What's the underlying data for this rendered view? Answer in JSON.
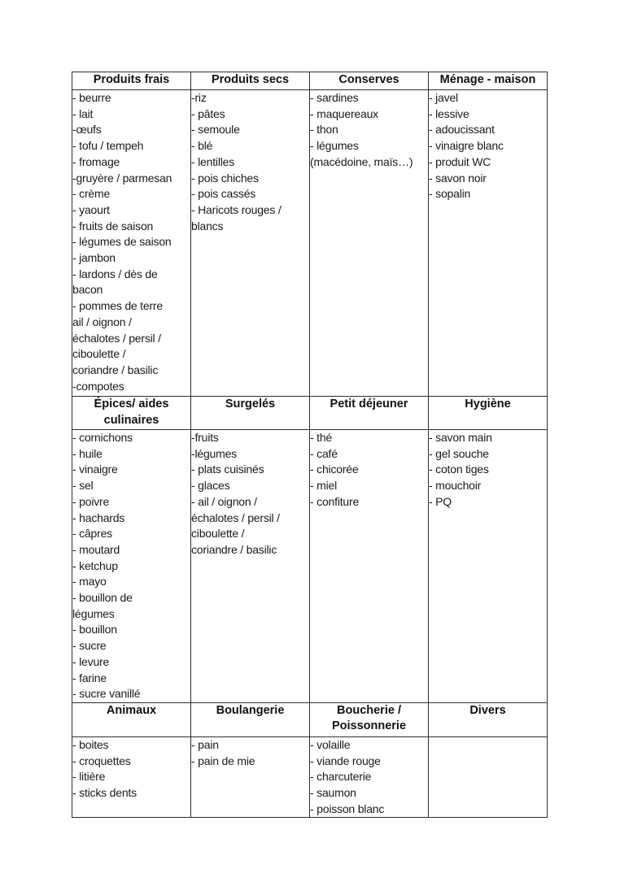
{
  "colors": {
    "background": "#ffffff",
    "text": "#1a1a1a",
    "border": "#2e2e2e"
  },
  "table": {
    "sections": [
      {
        "headers": [
          [
            "Produits frais"
          ],
          [
            "Produits secs"
          ],
          [
            "Conserves"
          ],
          [
            "Ménage - maison"
          ]
        ],
        "items": [
          [
            "- beurre",
            "- lait",
            "-œufs",
            "- tofu / tempeh",
            "- fromage",
            "-gruyère / parmesan",
            "- crème",
            "- yaourt",
            "- fruits de saison",
            "- légumes de saison",
            "- jambon",
            "- lardons / dès de",
            "bacon",
            "- pommes de terre",
            "ail / oignon /",
            "échalotes / persil /",
            "ciboulette /",
            "coriandre / basilic",
            "-compotes"
          ],
          [
            "-riz",
            "- pâtes",
            "- semoule",
            "- blé",
            "- lentilles",
            "- pois chiches",
            "- pois cassés",
            "- Haricots rouges /",
            "blancs"
          ],
          [
            "- sardines",
            "- maquereaux",
            "- thon",
            "- légumes",
            "(macédoine, maïs…)"
          ],
          [
            "- javel",
            "- lessive",
            "- adoucissant",
            "- vinaigre blanc",
            "- produit WC",
            "- savon noir",
            "- sopalin"
          ]
        ]
      },
      {
        "headers": [
          [
            "Épices/ aides",
            "culinaires"
          ],
          [
            "Surgelés"
          ],
          [
            "Petit déjeuner"
          ],
          [
            "Hygiène"
          ]
        ],
        "items": [
          [
            "- cornichons",
            "- huile",
            "- vinaigre",
            "- sel",
            "- poivre",
            "- hachards",
            "- câpres",
            "- moutard",
            "- ketchup",
            "- mayo",
            "- bouillon de",
            "légumes",
            "- bouillon",
            "- sucre",
            "- levure",
            "- farine",
            "- sucre vanillé"
          ],
          [
            "-fruits",
            "-légumes",
            "- plats cuisinés",
            "- glaces",
            "- ail / oignon /",
            "échalotes / persil /",
            "ciboulette /",
            "coriandre / basilic"
          ],
          [
            "- thé",
            "- café",
            "- chicorée",
            "- miel",
            "- confiture"
          ],
          [
            "- savon main",
            "- gel souche",
            "- coton tiges",
            "- mouchoir",
            "- PQ"
          ]
        ]
      },
      {
        "headers": [
          [
            "Animaux"
          ],
          [
            "Boulangerie"
          ],
          [
            "Boucherie /",
            "Poissonnerie"
          ],
          [
            "Divers"
          ]
        ],
        "items": [
          [
            "- boites",
            "- croquettes",
            "- litière",
            "- sticks dents"
          ],
          [
            "- pain",
            "- pain de mie"
          ],
          [
            "- volaille",
            "- viande rouge",
            "- charcuterie",
            "- saumon",
            "- poisson blanc"
          ],
          []
        ]
      }
    ]
  }
}
